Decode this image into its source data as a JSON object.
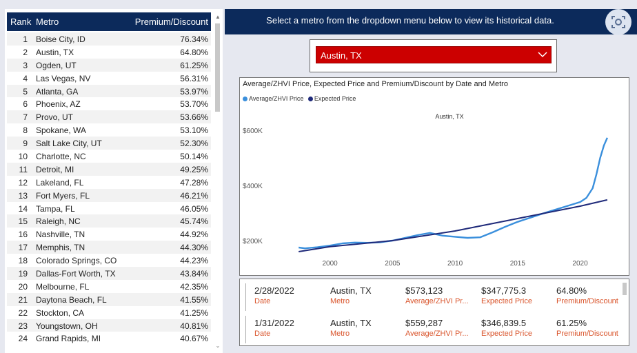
{
  "table": {
    "headers": {
      "rank": "Rank",
      "metro": "Metro",
      "premium": "Premium/Discount"
    },
    "rows": [
      {
        "rank": "1",
        "metro": "Boise City, ID",
        "pd": "76.34%"
      },
      {
        "rank": "2",
        "metro": "Austin, TX",
        "pd": "64.80%"
      },
      {
        "rank": "3",
        "metro": "Ogden, UT",
        "pd": "61.25%"
      },
      {
        "rank": "4",
        "metro": "Las Vegas, NV",
        "pd": "56.31%"
      },
      {
        "rank": "5",
        "metro": "Atlanta, GA",
        "pd": "53.97%"
      },
      {
        "rank": "6",
        "metro": "Phoenix, AZ",
        "pd": "53.70%"
      },
      {
        "rank": "7",
        "metro": "Provo, UT",
        "pd": "53.66%"
      },
      {
        "rank": "8",
        "metro": "Spokane, WA",
        "pd": "53.10%"
      },
      {
        "rank": "9",
        "metro": "Salt Lake City, UT",
        "pd": "52.30%"
      },
      {
        "rank": "10",
        "metro": "Charlotte, NC",
        "pd": "50.14%"
      },
      {
        "rank": "11",
        "metro": "Detroit, MI",
        "pd": "49.25%"
      },
      {
        "rank": "12",
        "metro": "Lakeland, FL",
        "pd": "47.28%"
      },
      {
        "rank": "13",
        "metro": "Fort Myers, FL",
        "pd": "46.21%"
      },
      {
        "rank": "14",
        "metro": "Tampa, FL",
        "pd": "46.05%"
      },
      {
        "rank": "15",
        "metro": "Raleigh, NC",
        "pd": "45.74%"
      },
      {
        "rank": "16",
        "metro": "Nashville, TN",
        "pd": "44.92%"
      },
      {
        "rank": "17",
        "metro": "Memphis, TN",
        "pd": "44.30%"
      },
      {
        "rank": "18",
        "metro": "Colorado Springs, CO",
        "pd": "44.23%"
      },
      {
        "rank": "19",
        "metro": "Dallas-Fort Worth, TX",
        "pd": "43.84%"
      },
      {
        "rank": "20",
        "metro": "Melbourne, FL",
        "pd": "42.35%"
      },
      {
        "rank": "21",
        "metro": "Daytona Beach, FL",
        "pd": "41.55%"
      },
      {
        "rank": "22",
        "metro": "Stockton, CA",
        "pd": "41.25%"
      },
      {
        "rank": "23",
        "metro": "Youngstown, OH",
        "pd": "40.81%"
      },
      {
        "rank": "24",
        "metro": "Grand Rapids, MI",
        "pd": "40.67%"
      }
    ]
  },
  "banner": {
    "text": "Select a metro from the dropdown menu below to view its historical data."
  },
  "icons": {
    "camera": "camera-focus-icon",
    "chevron": "chevron-down-icon",
    "scroll_up": "scroll-up-icon",
    "scroll_down": "scroll-down-icon"
  },
  "dropdown": {
    "selected": "Austin, TX"
  },
  "colors": {
    "navy": "#0c2a5b",
    "dropdown_red": "#cc0000",
    "zhvi": "#3a8fdc",
    "expected": "#1f2a7a",
    "label_orange": "#d9542b"
  },
  "chart_data": {
    "type": "line",
    "title": "Average/ZHVI Price, Expected Price and Premium/Discount by Date and Metro",
    "subtitle": "Austin, TX",
    "legend_position": "top-left",
    "x_ticks": [
      "2000",
      "2005",
      "2010",
      "2015",
      "2020"
    ],
    "y_ticks": [
      "$200K",
      "$400K",
      "$600K"
    ],
    "xlim": [
      1996,
      2023
    ],
    "ylim": [
      150000,
      640000
    ],
    "series": [
      {
        "name": "Average/ZHVI Price",
        "color": "#3a8fdc",
        "x": [
          1997.5,
          1998,
          1999,
          2000,
          2001,
          2002,
          2003,
          2004,
          2005,
          2006,
          2007,
          2008,
          2009,
          2010,
          2011,
          2012,
          2013,
          2014,
          2015,
          2016,
          2017,
          2018,
          2019,
          2020,
          2020.5,
          2021,
          2021.3,
          2021.6,
          2021.9,
          2022.17
        ],
        "values": [
          175000,
          172000,
          176000,
          182000,
          190000,
          193000,
          192000,
          194000,
          200000,
          210000,
          220000,
          228000,
          218000,
          214000,
          210000,
          212000,
          230000,
          250000,
          268000,
          283000,
          298000,
          312000,
          326000,
          340000,
          355000,
          390000,
          440000,
          500000,
          545000,
          573123
        ]
      },
      {
        "name": "Expected Price",
        "color": "#1f2a7a",
        "x": [
          1997.5,
          2000,
          2005,
          2010,
          2015,
          2020,
          2022.17
        ],
        "values": [
          160000,
          178000,
          200000,
          235000,
          280000,
          325000,
          347775
        ]
      }
    ]
  },
  "records": [
    {
      "date": "2/28/2022",
      "metro": "Austin, TX",
      "zhvi": "$573,123",
      "expected": "$347,775.3",
      "pd": "64.80%"
    },
    {
      "date": "1/31/2022",
      "metro": "Austin, TX",
      "zhvi": "$559,287",
      "expected": "$346,839.5",
      "pd": "61.25%"
    }
  ],
  "record_labels": {
    "date": "Date",
    "metro": "Metro",
    "zhvi": "Average/ZHVI Pr...",
    "expected": "Expected Price",
    "pd": "Premium/Discount"
  }
}
